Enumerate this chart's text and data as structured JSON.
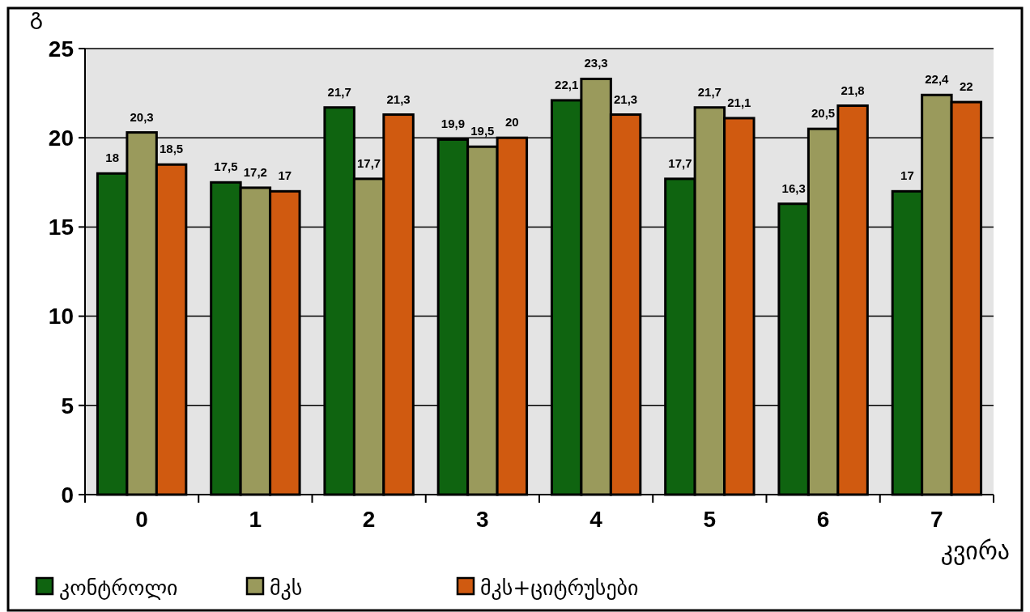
{
  "chart_data": {
    "type": "bar",
    "ylabel": "გ",
    "xlabel": "კვირა",
    "categories": [
      "0",
      "1",
      "2",
      "3",
      "4",
      "5",
      "6",
      "7"
    ],
    "series": [
      {
        "name": "კონტროლი",
        "color": "#0f6410",
        "values": [
          18,
          17.5,
          21.7,
          19.9,
          22.1,
          17.7,
          16.3,
          17
        ],
        "value_labels": [
          "18",
          "17,5",
          "21,7",
          "19,9",
          "22,1",
          "17,7",
          "16,3",
          "17"
        ]
      },
      {
        "name": "მკს",
        "color": "#9a9a5c",
        "values": [
          20.3,
          17.2,
          17.7,
          19.5,
          23.3,
          21.7,
          20.5,
          22.4
        ],
        "value_labels": [
          "20,3",
          "17,2",
          "17,7",
          "19,5",
          "23,3",
          "21,7",
          "20,5",
          "22,4"
        ]
      },
      {
        "name": "მკს+ციტრუსები",
        "color": "#d05a10",
        "values": [
          18.5,
          17,
          21.3,
          20,
          21.3,
          21.1,
          21.8,
          22
        ],
        "value_labels": [
          "18,5",
          "17",
          "21,3",
          "20",
          "21,3",
          "21,1",
          "21,8",
          "22"
        ]
      }
    ],
    "ylim": [
      0,
      25
    ],
    "yticks": [
      0,
      5,
      10,
      15,
      20,
      25
    ],
    "grid": "y",
    "legend": "bottom"
  }
}
